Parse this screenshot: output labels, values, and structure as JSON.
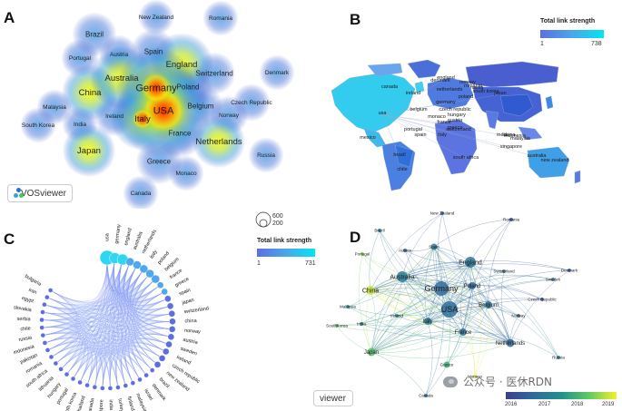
{
  "panels": {
    "a": {
      "label": "A"
    },
    "b": {
      "label": "B"
    },
    "c": {
      "label": "C"
    },
    "d": {
      "label": "D"
    }
  },
  "density_map": {
    "nodes": [
      {
        "name": "USA",
        "w": 1.0
      },
      {
        "name": "Germany",
        "w": 0.8
      },
      {
        "name": "Italy",
        "w": 0.55
      },
      {
        "name": "Australia",
        "w": 0.55
      },
      {
        "name": "England",
        "w": 0.55
      },
      {
        "name": "China",
        "w": 0.45
      },
      {
        "name": "Japan",
        "w": 0.4
      },
      {
        "name": "Netherlands",
        "w": 0.4
      },
      {
        "name": "France",
        "w": 0.35
      },
      {
        "name": "Poland",
        "w": 0.35
      },
      {
        "name": "Spain",
        "w": 0.3
      },
      {
        "name": "Brazil",
        "w": 0.28
      },
      {
        "name": "Greece",
        "w": 0.3
      },
      {
        "name": "Belgium",
        "w": 0.28
      },
      {
        "name": "Ireland",
        "w": 0.22
      },
      {
        "name": "Switzerland",
        "w": 0.25
      },
      {
        "name": "Austria",
        "w": 0.2
      },
      {
        "name": "Portugal",
        "w": 0.18
      },
      {
        "name": "Malaysia",
        "w": 0.15
      },
      {
        "name": "India",
        "w": 0.15
      },
      {
        "name": "South Korea",
        "w": 0.15
      },
      {
        "name": "Norway",
        "w": 0.2
      },
      {
        "name": "Monaco",
        "w": 0.15
      },
      {
        "name": "Czech Republic",
        "w": 0.18
      },
      {
        "name": "Denmark",
        "w": 0.15
      },
      {
        "name": "Russia",
        "w": 0.15
      },
      {
        "name": "Canada",
        "w": 0.15
      },
      {
        "name": "New Zealand",
        "w": 0.15
      },
      {
        "name": "Romania",
        "w": 0.15
      }
    ],
    "button_label": "VOSviewer"
  },
  "world_map": {
    "labels": [
      "canada",
      "usa",
      "mexico",
      "brazil",
      "chile",
      "ireland",
      "england",
      "belgium",
      "portugal",
      "spain",
      "italy",
      "greece",
      "germany",
      "netherlands",
      "denmark",
      "norway",
      "poland",
      "czech republic",
      "hungary",
      "austria",
      "monaco",
      "france",
      "switzerland",
      "romania",
      "russia",
      "india",
      "china",
      "malaysia",
      "south korea",
      "japan",
      "singapore",
      "indonesia",
      "south africa",
      "australia",
      "new zealand"
    ],
    "legend_title": "Total link strength",
    "legend_min": "1",
    "legend_max": "738"
  },
  "chord": {
    "countries": [
      "usa",
      "germany",
      "england",
      "australia",
      "netherlands",
      "italy",
      "poland",
      "belgium",
      "france",
      "greece",
      "spain",
      "japan",
      "switzerland",
      "china",
      "norway",
      "austria",
      "sweden",
      "ireland",
      "czech republic",
      "new zealand",
      "brazil",
      "denmark",
      "israel",
      "malaysia",
      "finland",
      "turkey",
      "india",
      "singapore",
      "canada",
      "thailand",
      "south korea",
      "portugal",
      "hungary",
      "lithuania",
      "south africa",
      "romania",
      "pakistan",
      "indonesia",
      "russia",
      "chile",
      "serbia",
      "slovakia",
      "egypt",
      "iran",
      "bulgaria"
    ],
    "size_legend": [
      "600",
      "200"
    ],
    "legend_title": "Total link strength",
    "legend_min": "1",
    "legend_max": "731"
  },
  "overlay": {
    "nodes": [
      {
        "name": "USA",
        "y": 2017.2
      },
      {
        "name": "Germany",
        "y": 2017.1
      },
      {
        "name": "Australia",
        "y": 2017.4
      },
      {
        "name": "England",
        "y": 2017.3
      },
      {
        "name": "China",
        "y": 2018.9
      },
      {
        "name": "Japan",
        "y": 2018.3
      },
      {
        "name": "Netherlands",
        "y": 2017.0
      },
      {
        "name": "Italy",
        "y": 2017.4
      },
      {
        "name": "France",
        "y": 2017.2
      },
      {
        "name": "Poland",
        "y": 2017.0
      },
      {
        "name": "Belgium",
        "y": 2017.3
      },
      {
        "name": "Spain",
        "y": 2017.4
      },
      {
        "name": "Brazil",
        "y": 2017.3
      },
      {
        "name": "Greece",
        "y": 2018.1
      },
      {
        "name": "Ireland",
        "y": 2017.8
      },
      {
        "name": "Switzerland",
        "y": 2017.2
      },
      {
        "name": "Austria",
        "y": 2016.9
      },
      {
        "name": "Portugal",
        "y": 2018.6
      },
      {
        "name": "Malaysia",
        "y": 2017.8
      },
      {
        "name": "India",
        "y": 2017.7
      },
      {
        "name": "SouthKorea",
        "y": 2018.3
      },
      {
        "name": "Norway",
        "y": 2017.1
      },
      {
        "name": "Monaco",
        "y": 2019.0
      },
      {
        "name": "Czech Republic",
        "y": 2016.8
      },
      {
        "name": "Denmark",
        "y": 2016.8
      },
      {
        "name": "Russia",
        "y": 2017.5
      },
      {
        "name": "Canada",
        "y": 2017.2
      },
      {
        "name": "New Zealand",
        "y": 2016.9
      },
      {
        "name": "Romania",
        "y": 2016.7
      },
      {
        "name": "Sweden",
        "y": 2017.3
      }
    ],
    "button_label": "viewer",
    "timeline": [
      "2016",
      "2017",
      "2018",
      "2019"
    ]
  },
  "watermark": {
    "text": "公众号 · 医休RDN"
  }
}
